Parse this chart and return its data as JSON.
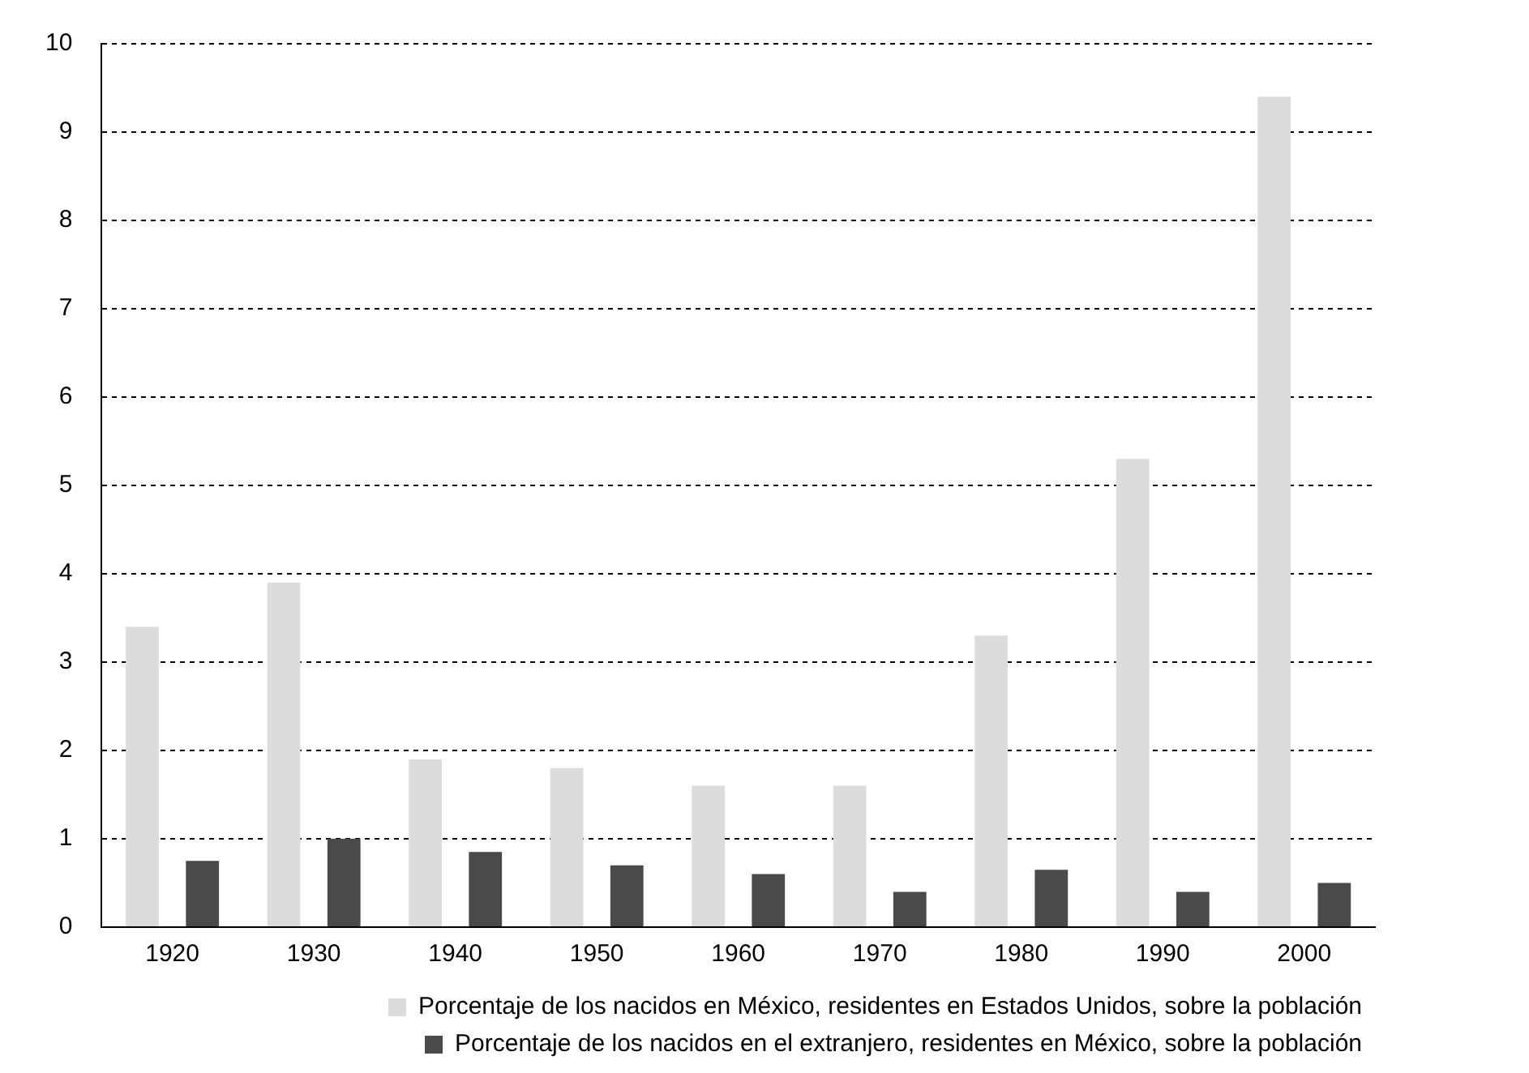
{
  "chart_data": {
    "type": "bar",
    "categories": [
      "1920",
      "1930",
      "1940",
      "1950",
      "1960",
      "1970",
      "1980",
      "1990",
      "2000"
    ],
    "series": [
      {
        "name": "Porcentaje de los nacidos en México, residentes en Estados Unidos, sobre la población",
        "color": "#dcdcdc",
        "values": [
          3.4,
          3.9,
          1.9,
          1.8,
          1.6,
          1.6,
          3.3,
          5.3,
          9.4
        ]
      },
      {
        "name": "Porcentaje de los nacidos en el extranjero, residentes en México, sobre la población",
        "color": "#4a4a4a",
        "values": [
          0.75,
          1.0,
          0.85,
          0.7,
          0.6,
          0.4,
          0.65,
          0.4,
          0.5
        ]
      }
    ],
    "ylim": [
      0,
      10
    ],
    "yticks": [
      0,
      1,
      2,
      3,
      4,
      5,
      6,
      7,
      8,
      9,
      10
    ],
    "grid": "y",
    "legend": "bottom"
  }
}
